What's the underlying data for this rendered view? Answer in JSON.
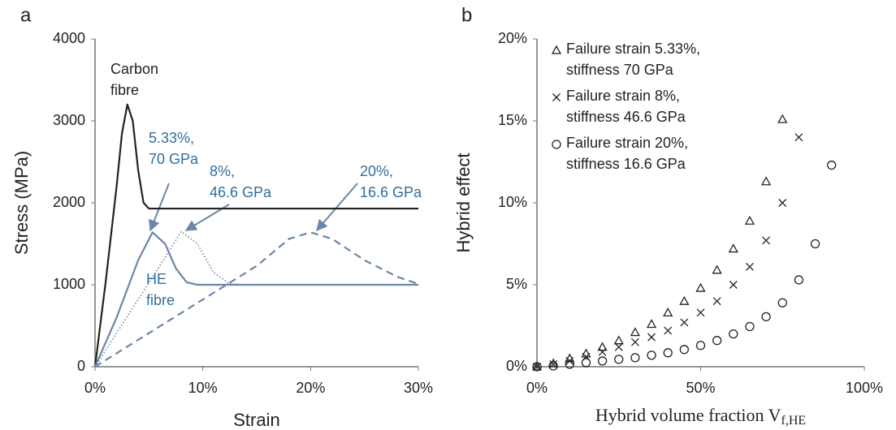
{
  "chart_data": [
    {
      "type": "line",
      "panel_label": "a",
      "x_label": "Strain",
      "y_label": "Stress (MPa)",
      "xlim": [
        0,
        30
      ],
      "xticks": [
        {
          "value": 0,
          "label": "0%"
        },
        {
          "value": 10,
          "label": "10%"
        },
        {
          "value": 20,
          "label": "20%"
        },
        {
          "value": 30,
          "label": "30%"
        }
      ],
      "ylim": [
        0,
        4000
      ],
      "yticks": [
        0,
        1000,
        2000,
        3000,
        4000
      ],
      "series": [
        {
          "color": "#222222",
          "style": "solid",
          "x": [
            0,
            1,
            2,
            2.5,
            3,
            3.5,
            4,
            4.5,
            5,
            30
          ],
          "values": [
            0,
            1050,
            2200,
            2850,
            3200,
            3000,
            2400,
            2000,
            1930,
            1930
          ]
        },
        {
          "color": "#6b86a8",
          "style": "solid",
          "x": [
            0,
            2,
            4,
            5.33,
            6.5,
            7.5,
            8.5,
            9.5,
            30
          ],
          "values": [
            0,
            600,
            1300,
            1640,
            1500,
            1200,
            1030,
            1000,
            1000
          ]
        },
        {
          "color": "#6b86a8",
          "style": "dotted",
          "x": [
            0,
            4,
            6,
            8,
            9.5,
            11,
            12.5,
            14
          ],
          "values": [
            0,
            820,
            1230,
            1650,
            1500,
            1150,
            1010,
            1000
          ]
        },
        {
          "color": "#6b86a8",
          "style": "dashed",
          "x": [
            0,
            10,
            15,
            18,
            20,
            22,
            25,
            28,
            30
          ],
          "values": [
            0,
            820,
            1230,
            1560,
            1640,
            1560,
            1300,
            1100,
            1010
          ]
        }
      ],
      "annotations": [
        {
          "text": "Carbon\nfibre",
          "color": "#222222"
        },
        {
          "text": "5.33%,\n70 GPa",
          "color": "#2f6f9f"
        },
        {
          "text": "8%,\n46.6 GPa",
          "color": "#2f6f9f"
        },
        {
          "text": "20%,\n16.6 GPa",
          "color": "#2f6f9f"
        },
        {
          "text": "HE\nfibre",
          "color": "#2f6f9f"
        }
      ]
    },
    {
      "type": "scatter",
      "panel_label": "b",
      "x_label": "Hybrid volume fraction V",
      "x_label_subscript": "f,HE",
      "y_label": "Hybrid effect",
      "xlim": [
        0,
        100
      ],
      "xticks": [
        {
          "value": 0,
          "label": "0%"
        },
        {
          "value": 50,
          "label": "50%"
        },
        {
          "value": 100,
          "label": "100%"
        }
      ],
      "ylim": [
        0,
        20
      ],
      "yticks": [
        {
          "value": 0,
          "label": "0%"
        },
        {
          "value": 5,
          "label": "5%"
        },
        {
          "value": 10,
          "label": "10%"
        },
        {
          "value": 15,
          "label": "15%"
        },
        {
          "value": 20,
          "label": "20%"
        }
      ],
      "series": [
        {
          "name": "Failure strain 5.33%,\nstiffness 70 GPa",
          "marker": "triangle",
          "color": "#222222",
          "x": [
            0,
            5,
            10,
            15,
            20,
            25,
            30,
            35,
            40,
            45,
            50,
            55,
            60,
            65,
            70,
            75
          ],
          "values": [
            0,
            0.2,
            0.5,
            0.8,
            1.2,
            1.6,
            2.1,
            2.6,
            3.3,
            4.0,
            4.8,
            5.9,
            7.2,
            8.9,
            11.3,
            15.1
          ]
        },
        {
          "name": "Failure strain 8%,\nstiffness 46.6 GPa",
          "marker": "cross",
          "color": "#222222",
          "x": [
            0,
            5,
            10,
            15,
            20,
            25,
            30,
            35,
            40,
            45,
            50,
            55,
            60,
            65,
            70,
            75,
            80
          ],
          "values": [
            0,
            0.15,
            0.35,
            0.6,
            0.9,
            1.2,
            1.5,
            1.8,
            2.2,
            2.7,
            3.3,
            4.0,
            5.0,
            6.1,
            7.7,
            10.0,
            14.0
          ]
        },
        {
          "name": "Failure strain 20%,\nstiffness 16.6 GPa",
          "marker": "circle",
          "color": "#222222",
          "x": [
            0,
            5,
            10,
            15,
            20,
            25,
            30,
            35,
            40,
            45,
            50,
            55,
            60,
            65,
            70,
            75,
            80,
            85,
            90
          ],
          "values": [
            0,
            0.05,
            0.15,
            0.25,
            0.35,
            0.45,
            0.55,
            0.7,
            0.85,
            1.05,
            1.3,
            1.6,
            2.0,
            2.45,
            3.05,
            3.9,
            5.3,
            7.5,
            12.3
          ]
        }
      ]
    }
  ]
}
